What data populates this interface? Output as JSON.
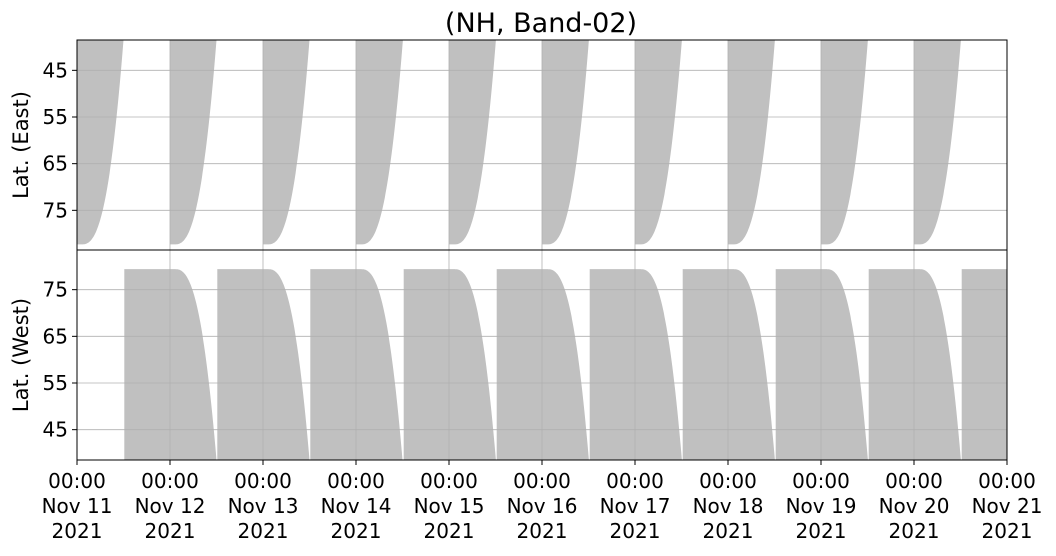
{
  "chart_data": {
    "type": "area",
    "title": "(NH, Band-02)",
    "x_ticks": [
      [
        "00:00",
        "Nov 11",
        "2021"
      ],
      [
        "00:00",
        "Nov 12",
        "2021"
      ],
      [
        "00:00",
        "Nov 13",
        "2021"
      ],
      [
        "00:00",
        "Nov 14",
        "2021"
      ],
      [
        "00:00",
        "Nov 15",
        "2021"
      ],
      [
        "00:00",
        "Nov 16",
        "2021"
      ],
      [
        "00:00",
        "Nov 17",
        "2021"
      ],
      [
        "00:00",
        "Nov 18",
        "2021"
      ],
      [
        "00:00",
        "Nov 19",
        "2021"
      ],
      [
        "00:00",
        "Nov 20",
        "2021"
      ],
      [
        "00:00",
        "Nov 21",
        "2021"
      ]
    ],
    "x_range": [
      "2021-11-11 00:00",
      "2021-11-21 00:00"
    ],
    "grid": true,
    "fill_color": "#c0c0c0",
    "panels": [
      {
        "ylabel": "Lat. (East)",
        "yticks": [
          45,
          55,
          65,
          75
        ],
        "ylim": [
          38.5,
          83.5
        ],
        "y_inverted": true,
        "coverage_start_hours": [
          0,
          24,
          48,
          72,
          96,
          120,
          144,
          168,
          192,
          216
        ],
        "coverage_end_hours": [
          1.2,
          25.2,
          49.2,
          73.3,
          97.3,
          121.3,
          145.3,
          169.3,
          193.3,
          217.3
        ],
        "peak_lat": 82.3
      },
      {
        "ylabel": "Lat. (West)",
        "yticks": [
          45,
          55,
          65,
          75
        ],
        "ylim": [
          38.5,
          83.5
        ],
        "y_inverted": false,
        "coverage_start_hours": [
          12.2,
          36.2,
          60.2,
          84.3,
          108.3,
          132.3,
          156.3,
          180.3,
          204.3,
          228.3
        ],
        "coverage_end_hours": [
          1.2,
          25.2,
          49.2,
          73.3,
          97.3,
          121.3,
          145.3,
          169.3,
          193.3,
          217.3
        ],
        "peak_lat": 79.4
      }
    ]
  }
}
